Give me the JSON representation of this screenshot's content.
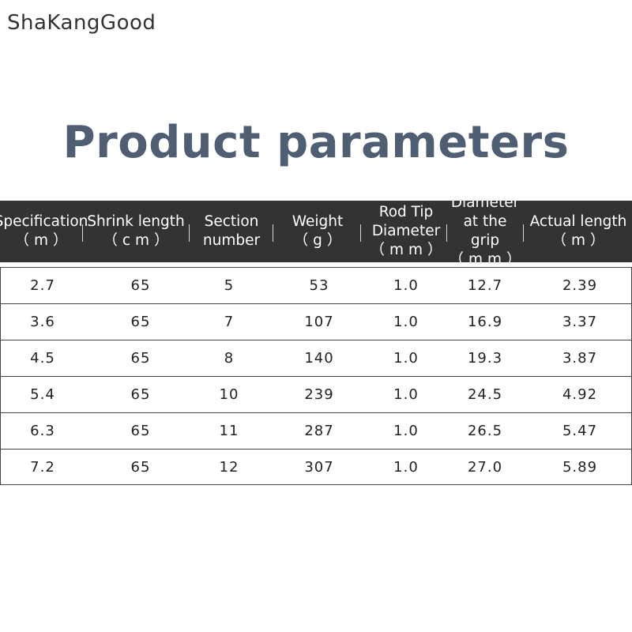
{
  "brand": "ShaKangGood",
  "title": "Product parameters",
  "table": {
    "headers": [
      {
        "lines": [
          "Specification"
        ],
        "unit": "（m）"
      },
      {
        "lines": [
          "Shrink length"
        ],
        "unit": "（cm）"
      },
      {
        "lines": [
          "Section",
          "number"
        ],
        "unit": ""
      },
      {
        "lines": [
          "Weight"
        ],
        "unit": "（g）"
      },
      {
        "lines": [
          "Rod Tip",
          "Diameter"
        ],
        "unit": "（mm）"
      },
      {
        "lines": [
          "Diameter",
          "at the grip"
        ],
        "unit": "（mm）"
      },
      {
        "lines": [
          "Actual length"
        ],
        "unit": "（m）"
      }
    ],
    "rows": [
      [
        "2.7",
        "65",
        "5",
        "53",
        "1.0",
        "12.7",
        "2.39"
      ],
      [
        "3.6",
        "65",
        "7",
        "107",
        "1.0",
        "16.9",
        "3.37"
      ],
      [
        "4.5",
        "65",
        "8",
        "140",
        "1.0",
        "19.3",
        "3.87"
      ],
      [
        "5.4",
        "65",
        "10",
        "239",
        "1.0",
        "24.5",
        "4.92"
      ],
      [
        "6.3",
        "65",
        "11",
        "287",
        "1.0",
        "26.5",
        "5.47"
      ],
      [
        "7.2",
        "65",
        "12",
        "307",
        "1.0",
        "27.0",
        "5.89"
      ]
    ]
  }
}
